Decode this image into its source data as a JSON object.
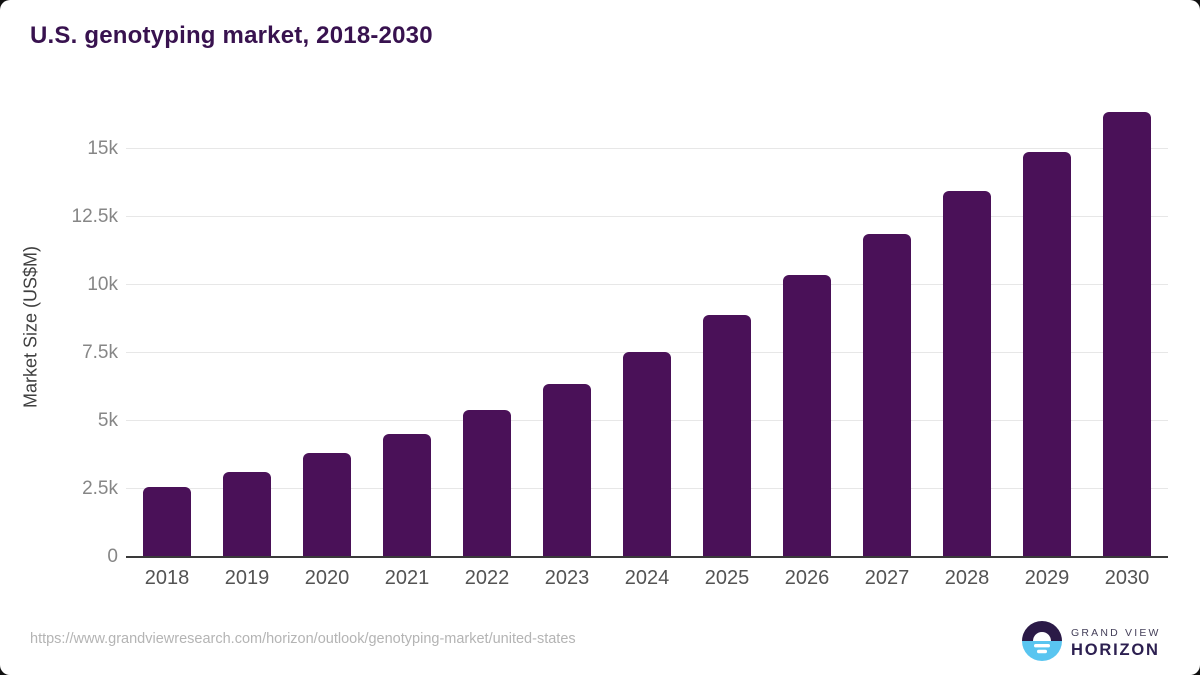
{
  "title": "U.S. genotyping market, 2018-2030",
  "chart_data": {
    "type": "bar",
    "title": "U.S. genotyping market, 2018-2030",
    "xlabel": "",
    "ylabel": "Market Size (US$M)",
    "categories": [
      "2018",
      "2019",
      "2020",
      "2021",
      "2022",
      "2023",
      "2024",
      "2025",
      "2026",
      "2027",
      "2028",
      "2029",
      "2030"
    ],
    "values": [
      2580,
      3110,
      3810,
      4520,
      5390,
      6370,
      7540,
      8890,
      10380,
      11880,
      13450,
      14890,
      16370
    ],
    "ytick_values": [
      0,
      2500,
      5000,
      7500,
      10000,
      12500,
      15000
    ],
    "ytick_labels": [
      "0",
      "2.5k",
      "5k",
      "7.5k",
      "10k",
      "12.5k",
      "15k"
    ],
    "ylim": [
      0,
      16950
    ],
    "grid": "horizontal",
    "legend": "none",
    "bar_color": "#4a1158"
  },
  "colors": {
    "title": "#38124f",
    "bar": "#4a1158",
    "gridline": "#e7e7e7",
    "axis_line": "#3a3a3a",
    "logo_blue": "#59c5f0",
    "logo_purple": "#2b1a47"
  },
  "footer": {
    "source_url": "https://www.grandviewresearch.com/horizon/outlook/genotyping-market/united-states",
    "logo": {
      "icon": "sunrise-over-water-circle-icon",
      "top": "GRAND VIEW",
      "bottom": "HORIZON"
    }
  }
}
